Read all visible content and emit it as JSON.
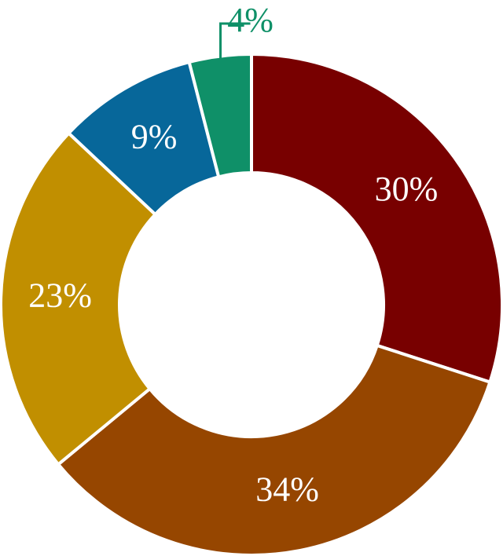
{
  "chart_data": {
    "type": "donut",
    "values": [
      30,
      34,
      23,
      9,
      4
    ],
    "value_labels": [
      "30%",
      "34%",
      "23%",
      "9%",
      "4%"
    ],
    "colors": [
      "#780000",
      "#964600",
      "#c18f00",
      "#07679a",
      "#0f9068"
    ]
  }
}
